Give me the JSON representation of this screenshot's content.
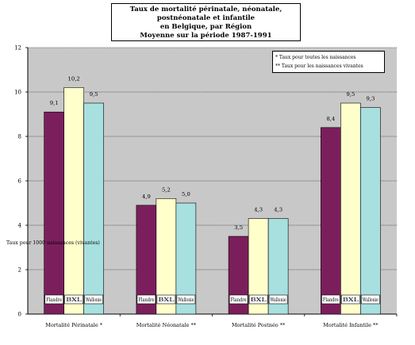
{
  "chart_data": {
    "type": "bar",
    "title_lines": [
      "Taux de mortalité périnatale, néonatale, postnéonatale et infantile",
      "en Belgique, par Région",
      "Moyenne sur la période 1987-1991"
    ],
    "legend_notes": [
      "* Taux pour toutes les naissances",
      "** Taux pour les naissances vivantes"
    ],
    "ylabel": "Taux pour 1000 naissances (vivantes)",
    "xlabel": "",
    "ylim": [
      0,
      12
    ],
    "yticks": [
      "0",
      "2",
      "4",
      "6",
      "8",
      "10",
      "12"
    ],
    "categories": [
      "Mortalité Périnatale *",
      "Mortalité Néonatale **",
      "Mortalité Postnéo **",
      "Mortalité Infantile **"
    ],
    "series": [
      {
        "name": "Flandre",
        "color": "#7b1f5c",
        "values": [
          9.1,
          4.9,
          3.5,
          8.4
        ],
        "labels": [
          "9,1",
          "4,9",
          "3,5",
          "8,4"
        ]
      },
      {
        "name": "BXL",
        "color": "#ffffcc",
        "values": [
          10.2,
          5.2,
          4.3,
          9.5
        ],
        "labels": [
          "10,2",
          "5,2",
          "4,3",
          "9,5"
        ]
      },
      {
        "name": "Wallonie",
        "color": "#a8e0e0",
        "values": [
          9.5,
          5.0,
          4.3,
          9.3
        ],
        "labels": [
          "9,5",
          "5,0",
          "4,3",
          "9,3"
        ]
      }
    ],
    "grid": true,
    "plot_background": "#c8c8c8"
  }
}
